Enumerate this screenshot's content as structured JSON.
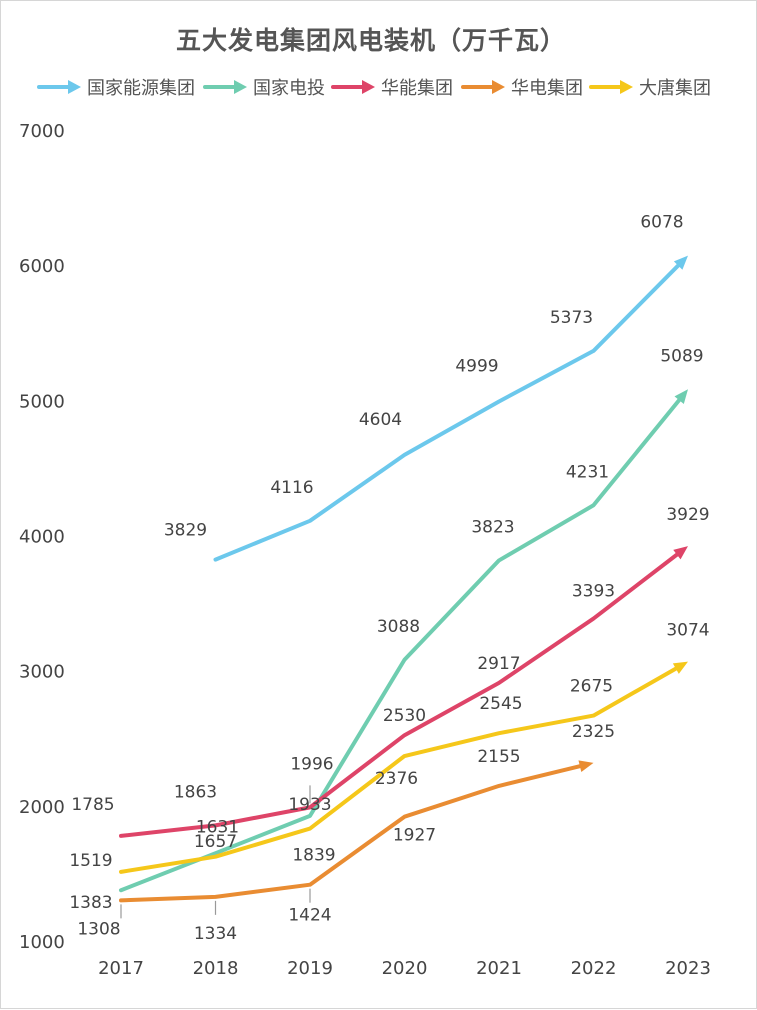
{
  "chart_data": {
    "type": "line",
    "title": "五大发电集团风电装机（万千瓦）",
    "categories": [
      "2017",
      "2018",
      "2019",
      "2020",
      "2021",
      "2022",
      "2023"
    ],
    "yticks": [
      "1000",
      "2000",
      "3000",
      "4000",
      "5000",
      "6000",
      "7000"
    ],
    "ylim": [
      1000,
      7000
    ],
    "grid": false,
    "legend_position": "top",
    "series": [
      {
        "name": "国家能源集团",
        "color": "#6cc8ec",
        "values": [
          null,
          3829,
          4116,
          4604,
          4999,
          5373,
          6078
        ]
      },
      {
        "name": "国家电投",
        "color": "#6fcdb0",
        "values": [
          1383,
          1657,
          1933,
          3088,
          3823,
          4231,
          5089
        ]
      },
      {
        "name": "华能集团",
        "color": "#de4468",
        "values": [
          1785,
          1863,
          1996,
          2530,
          2917,
          3393,
          3929
        ]
      },
      {
        "name": "华电集团",
        "color": "#e98c32",
        "values": [
          1308,
          1334,
          1424,
          1927,
          2155,
          2325,
          null
        ]
      },
      {
        "name": "大唐集团",
        "color": "#f5c71a",
        "values": [
          1519,
          1631,
          1839,
          2376,
          2545,
          2675,
          3074
        ]
      }
    ]
  }
}
